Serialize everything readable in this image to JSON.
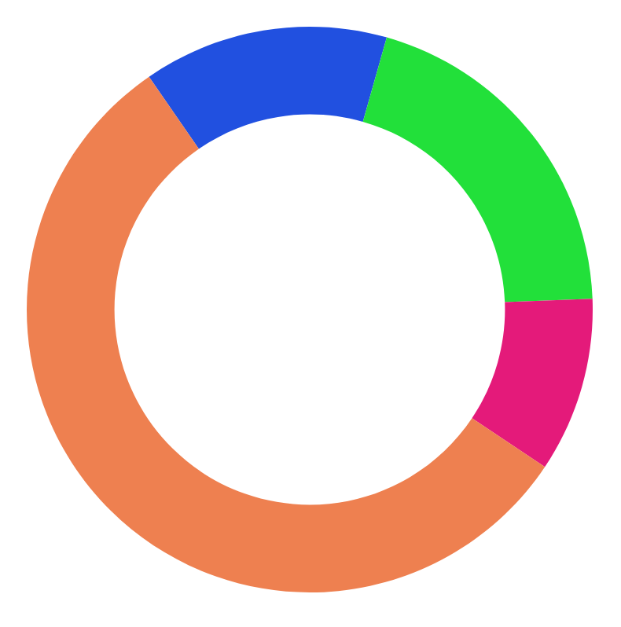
{
  "chart_data": {
    "type": "donut",
    "categories": [
      null,
      null,
      null,
      null
    ],
    "values": [
      14,
      20,
      10,
      56
    ],
    "colors": [
      "#2150e0",
      "#22e03a",
      "#e41a7a",
      "#ee8050"
    ]
  }
}
